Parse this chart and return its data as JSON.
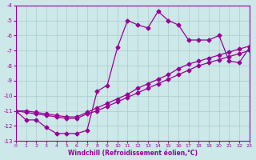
{
  "xlabel": "Windchill (Refroidissement éolien,°C)",
  "bg_color": "#cce8e8",
  "line_color": "#990099",
  "grid_color": "#aacccc",
  "xlim": [
    0,
    23
  ],
  "ylim": [
    -13,
    -4
  ],
  "xticks": [
    0,
    1,
    2,
    3,
    4,
    5,
    6,
    7,
    8,
    9,
    10,
    11,
    12,
    13,
    14,
    15,
    16,
    17,
    18,
    19,
    20,
    21,
    22,
    23
  ],
  "yticks": [
    -4,
    -5,
    -6,
    -7,
    -8,
    -9,
    -10,
    -11,
    -12,
    -13
  ],
  "line_diag1_x": [
    0,
    1,
    2,
    3,
    4,
    5,
    6,
    7,
    8,
    9,
    10,
    11,
    12,
    13,
    14,
    15,
    16,
    17,
    18,
    19,
    20,
    21,
    22,
    23
  ],
  "line_diag1_y": [
    -11.0,
    -11.1,
    -11.2,
    -11.3,
    -11.4,
    -11.5,
    -11.5,
    -11.2,
    -11.0,
    -10.7,
    -10.4,
    -10.1,
    -9.8,
    -9.5,
    -9.2,
    -8.9,
    -8.6,
    -8.3,
    -8.0,
    -7.8,
    -7.6,
    -7.4,
    -7.2,
    -7.0
  ],
  "line_diag2_x": [
    0,
    1,
    2,
    3,
    4,
    5,
    6,
    7,
    8,
    9,
    10,
    11,
    12,
    13,
    14,
    15,
    16,
    17,
    18,
    19,
    20,
    21,
    22,
    23
  ],
  "line_diag2_y": [
    -11.0,
    -11.0,
    -11.1,
    -11.2,
    -11.3,
    -11.4,
    -11.4,
    -11.1,
    -10.8,
    -10.5,
    -10.2,
    -9.9,
    -9.5,
    -9.2,
    -8.9,
    -8.6,
    -8.2,
    -7.9,
    -7.7,
    -7.5,
    -7.3,
    -7.1,
    -6.9,
    -6.7
  ],
  "line_wavy_x": [
    0,
    1,
    2,
    3,
    4,
    5,
    6,
    7,
    8,
    9,
    10,
    11,
    12,
    13,
    14,
    15,
    16,
    17,
    18,
    19,
    20,
    21,
    22,
    23
  ],
  "line_wavy_y": [
    -11.0,
    -11.6,
    -11.6,
    -12.1,
    -12.5,
    -12.5,
    -12.5,
    -12.3,
    -9.7,
    -9.3,
    -6.8,
    -5.0,
    -5.3,
    -5.5,
    -4.4,
    -5.0,
    -5.3,
    -6.3,
    -6.3,
    -6.3,
    -6.0,
    -7.7,
    -7.8,
    -6.8
  ]
}
